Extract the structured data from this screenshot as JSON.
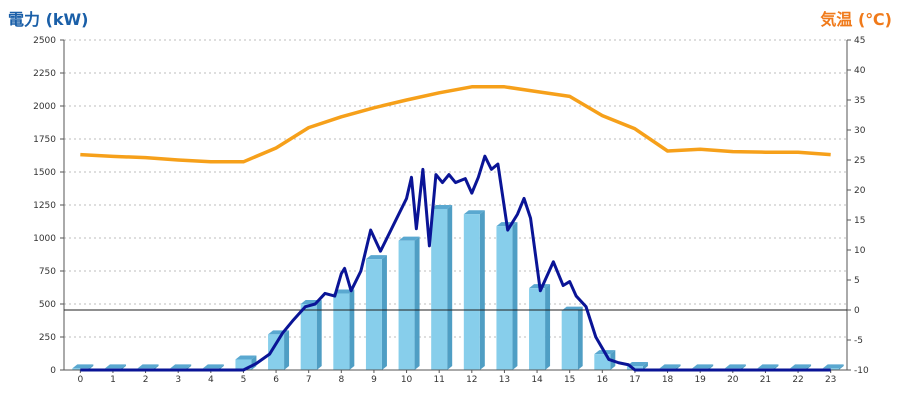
{
  "chart_data": {
    "type": "bar",
    "left_axis_title": "電力 (kW)",
    "right_axis_title": "気温 (℃)",
    "categories": [
      "0",
      "1",
      "2",
      "3",
      "4",
      "5",
      "6",
      "7",
      "8",
      "9",
      "10",
      "11",
      "12",
      "13",
      "14",
      "15",
      "16",
      "17",
      "18",
      "19",
      "20",
      "21",
      "22",
      "23"
    ],
    "left_ylim": [
      0,
      2500
    ],
    "left_ticks": [
      0,
      250,
      500,
      750,
      1000,
      1250,
      1500,
      1750,
      2000,
      2250,
      2500
    ],
    "right_ylim": [
      -10,
      45
    ],
    "right_ticks": [
      -10,
      -5,
      0,
      5,
      10,
      15,
      20,
      25,
      30,
      35,
      40,
      45
    ],
    "grid": true,
    "bar_values": [
      12,
      12,
      12,
      12,
      12,
      80,
      270,
      500,
      580,
      840,
      980,
      1220,
      1180,
      1090,
      620,
      450,
      120,
      30,
      12,
      12,
      12,
      12,
      12,
      12
    ],
    "temperature": {
      "x": [
        0,
        1,
        2,
        3,
        4,
        5,
        6,
        7,
        8,
        9,
        10,
        11,
        12,
        13,
        14,
        15,
        16,
        17,
        18,
        19,
        20,
        21,
        22,
        23
      ],
      "values": [
        25.9,
        25.6,
        25.4,
        25.0,
        24.7,
        24.7,
        27.0,
        30.4,
        32.2,
        33.7,
        35.0,
        36.2,
        37.2,
        37.2,
        36.4,
        35.6,
        32.4,
        30.2,
        26.5,
        26.8,
        26.4,
        26.3,
        26.3,
        25.9
      ]
    },
    "power_line": {
      "x": [
        0,
        4,
        5.0,
        5.4,
        5.8,
        6.2,
        6.5,
        6.9,
        7.2,
        7.5,
        7.8,
        8.0,
        8.1,
        8.3,
        8.6,
        8.9,
        9.2,
        9.5,
        9.7,
        10.0,
        10.15,
        10.3,
        10.5,
        10.7,
        10.9,
        11.1,
        11.3,
        11.5,
        11.8,
        12.0,
        12.2,
        12.4,
        12.6,
        12.8,
        13.1,
        13.4,
        13.6,
        13.8,
        14.1,
        14.5,
        14.8,
        15.0,
        15.2,
        15.5,
        15.8,
        16.2,
        16.5,
        16.8,
        17.0,
        18.0,
        23.0
      ],
      "values": [
        0,
        0,
        0,
        50,
        120,
        280,
        370,
        480,
        500,
        580,
        560,
        730,
        770,
        600,
        750,
        1060,
        900,
        1050,
        1150,
        1300,
        1460,
        1070,
        1520,
        940,
        1480,
        1420,
        1480,
        1420,
        1450,
        1340,
        1460,
        1620,
        1520,
        1560,
        1060,
        1180,
        1300,
        1150,
        600,
        820,
        640,
        670,
        560,
        480,
        250,
        80,
        55,
        40,
        0,
        0,
        0
      ]
    },
    "threshold_line_temp": 0,
    "colors": {
      "left_title": "#1a5fa8",
      "right_title": "#f07a1a",
      "bar_front": "#87ceeb",
      "bar_side": "#4f9ec4",
      "bar_top": "#5aa8d0",
      "power": "#0a1496",
      "temperature": "#f6a01a",
      "grid": "#bdbdbd",
      "axis": "#555555"
    }
  }
}
